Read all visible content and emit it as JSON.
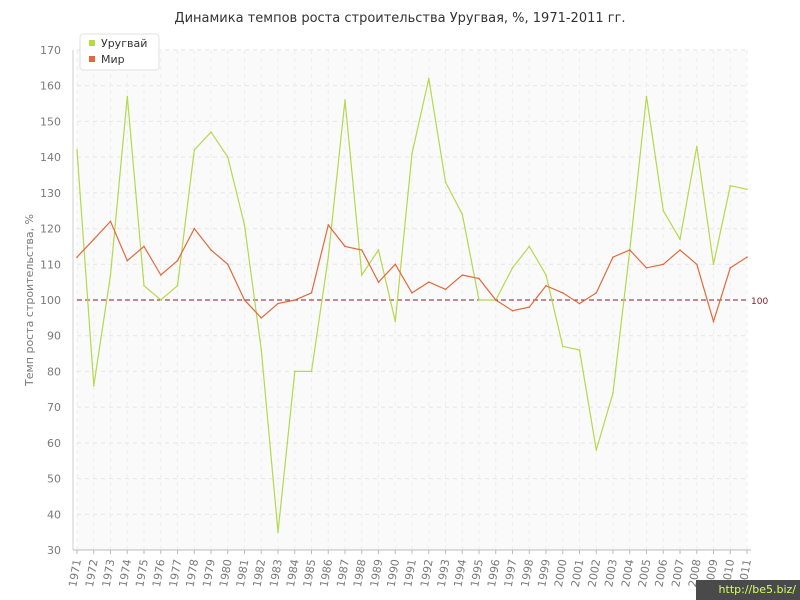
{
  "chart_data": {
    "type": "line",
    "title": "Динамика темпов роста строительства Уругвая, %, 1971-2011 гг.",
    "ylabel": "Темп роста строительства, %",
    "xlabel": "",
    "ylim": [
      30,
      170
    ],
    "yticks": [
      30,
      40,
      50,
      60,
      70,
      80,
      90,
      100,
      110,
      120,
      130,
      140,
      150,
      160,
      170
    ],
    "x": [
      "1971",
      "1972",
      "1973",
      "1974",
      "1975",
      "1976",
      "1977",
      "1978",
      "1979",
      "1980",
      "1981",
      "1982",
      "1983",
      "1984",
      "1985",
      "1986",
      "1987",
      "1988",
      "1989",
      "1990",
      "1991",
      "1992",
      "1993",
      "1994",
      "1995",
      "1996",
      "1997",
      "1998",
      "1999",
      "2000",
      "2001",
      "2002",
      "2003",
      "2004",
      "2005",
      "2006",
      "2007",
      "2008",
      "2009",
      "2010",
      "2011"
    ],
    "series": [
      {
        "name": "Уругвай",
        "color": "#b5d84c",
        "values": [
          142,
          76,
          107,
          157,
          104,
          100,
          104,
          142,
          147,
          140,
          121,
          86,
          35,
          80,
          80,
          112,
          156,
          107,
          114,
          94,
          141,
          162,
          133,
          124,
          100,
          100,
          109,
          115,
          107,
          87,
          86,
          58,
          74,
          114,
          157,
          125,
          117,
          143,
          110,
          132,
          131
        ]
      },
      {
        "name": "Мир",
        "color": "#e06a3c",
        "values": [
          112,
          117,
          122,
          111,
          115,
          107,
          111,
          120,
          114,
          110,
          100,
          95,
          99,
          100,
          102,
          121,
          115,
          114,
          105,
          110,
          102,
          105,
          103,
          107,
          106,
          100,
          97,
          98,
          104,
          102,
          99,
          102,
          112,
          114,
          109,
          110,
          114,
          110,
          94,
          109,
          112
        ]
      }
    ],
    "reference_line": {
      "value": 100,
      "label": "100",
      "color": "#8b1a2b"
    },
    "grid": true,
    "legend": "top-left"
  },
  "watermark": "http://be5.biz/"
}
